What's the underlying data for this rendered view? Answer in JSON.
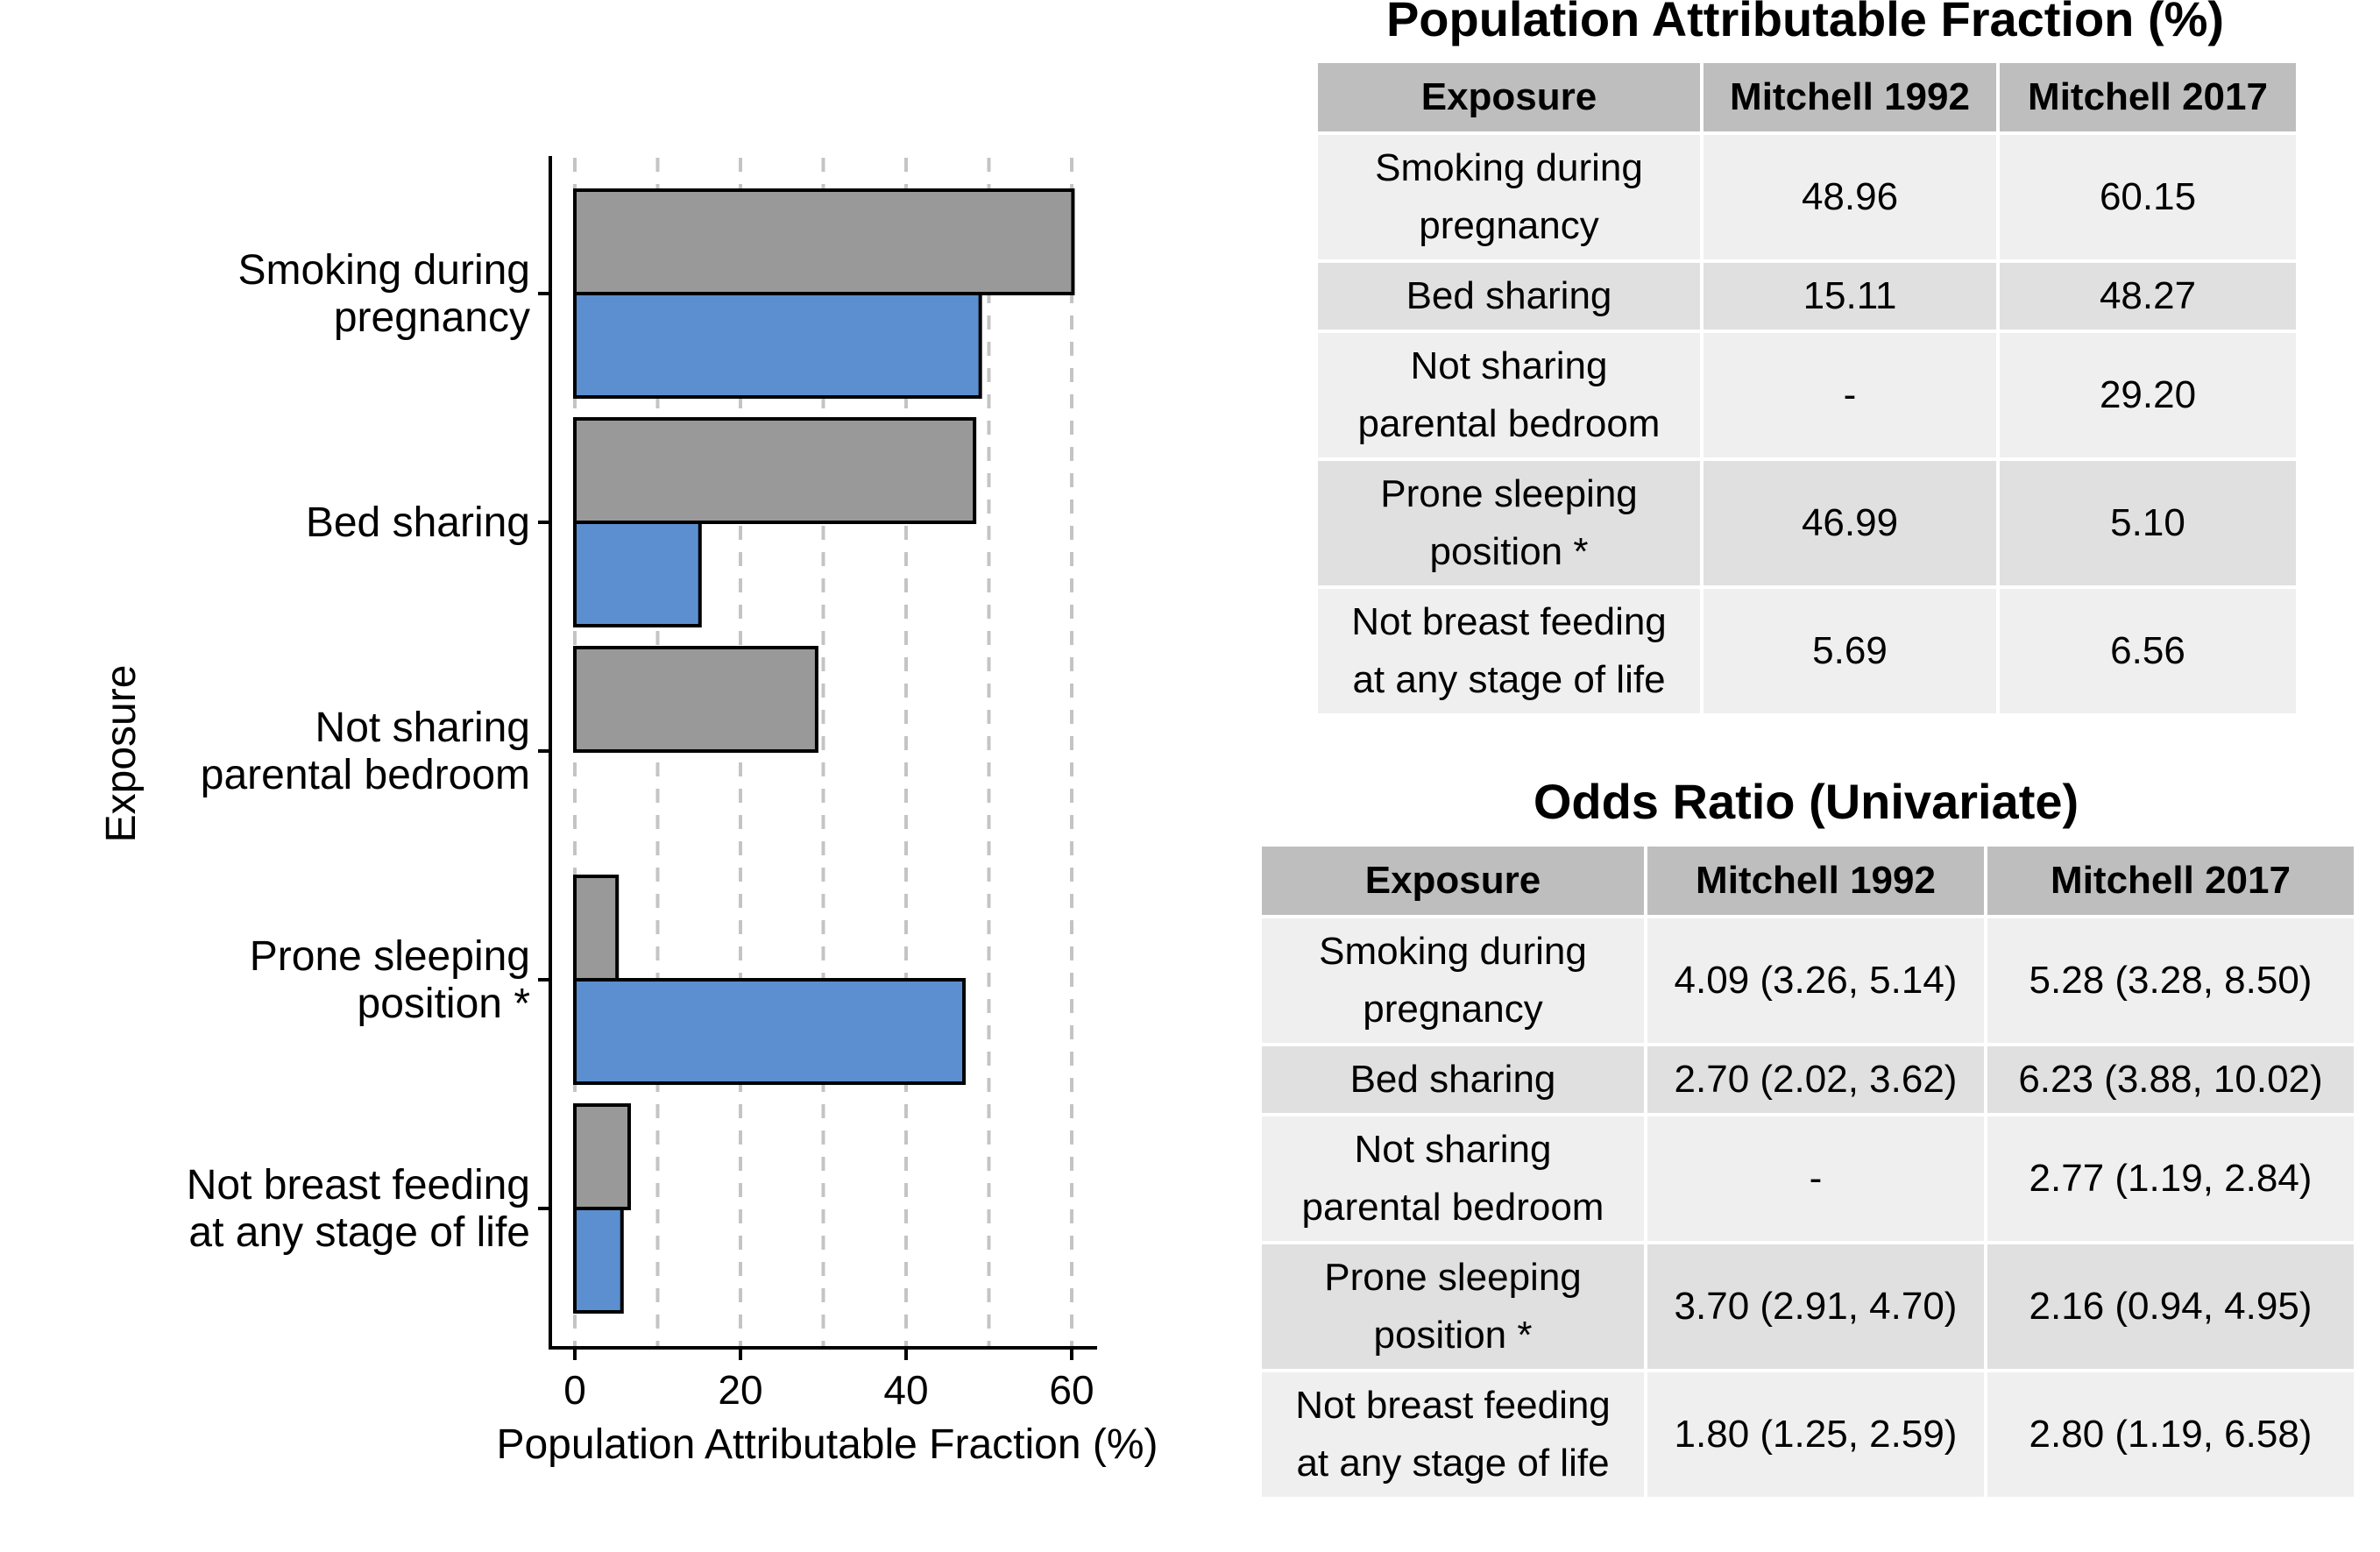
{
  "chart_data": {
    "type": "bar",
    "orientation": "horizontal",
    "xlabel": "Population Attributable Fraction (%)",
    "ylabel": "Exposure",
    "xlim": [
      0,
      62
    ],
    "xticks": [
      "0",
      "20",
      "40",
      "60"
    ],
    "grid": "dashed vertical lines every 10",
    "legend": "none",
    "categories": [
      "Smoking during\npregnancy",
      "Bed sharing",
      "Not sharing\nparental bedroom",
      "Prone sleeping\nposition *",
      "Not breast feeding\nat any stage of life"
    ],
    "series": [
      {
        "values": [
          60.15,
          48.27,
          29.2,
          5.1,
          6.56
        ],
        "color": "#999999"
      },
      {
        "values": [
          48.96,
          15.11,
          null,
          46.99,
          5.69
        ],
        "color": "#5b8fd0"
      }
    ]
  },
  "paf_table": {
    "title": "Population Attributable Fraction (%)",
    "headers": [
      "Exposure",
      "Mitchell 1992",
      "Mitchell 2017"
    ],
    "rows": [
      [
        "Smoking during\npregnancy",
        "48.96",
        "60.15"
      ],
      [
        "Bed sharing",
        "15.11",
        "48.27"
      ],
      [
        "Not sharing\nparental bedroom",
        "-",
        "29.20"
      ],
      [
        "Prone sleeping\nposition *",
        "46.99",
        "5.10"
      ],
      [
        "Not breast feeding\nat any stage of life",
        "5.69",
        "6.56"
      ]
    ]
  },
  "or_table": {
    "title": "Odds Ratio (Univariate)",
    "headers": [
      "Exposure",
      "Mitchell 1992",
      "Mitchell 2017"
    ],
    "rows": [
      [
        "Smoking during\npregnancy",
        "4.09 (3.26, 5.14)",
        "5.28 (3.28, 8.50)"
      ],
      [
        "Bed sharing",
        "2.70 (2.02, 3.62)",
        "6.23 (3.88, 10.02)"
      ],
      [
        "Not sharing\nparental bedroom",
        "-",
        "2.77 (1.19, 2.84)"
      ],
      [
        "Prone sleeping\nposition *",
        "3.70 (2.91, 4.70)",
        "2.16 (0.94, 4.95)"
      ],
      [
        "Not breast feeding\nat any stage of life",
        "1.80 (1.25, 2.59)",
        "2.80 (1.19, 6.58)"
      ]
    ]
  }
}
